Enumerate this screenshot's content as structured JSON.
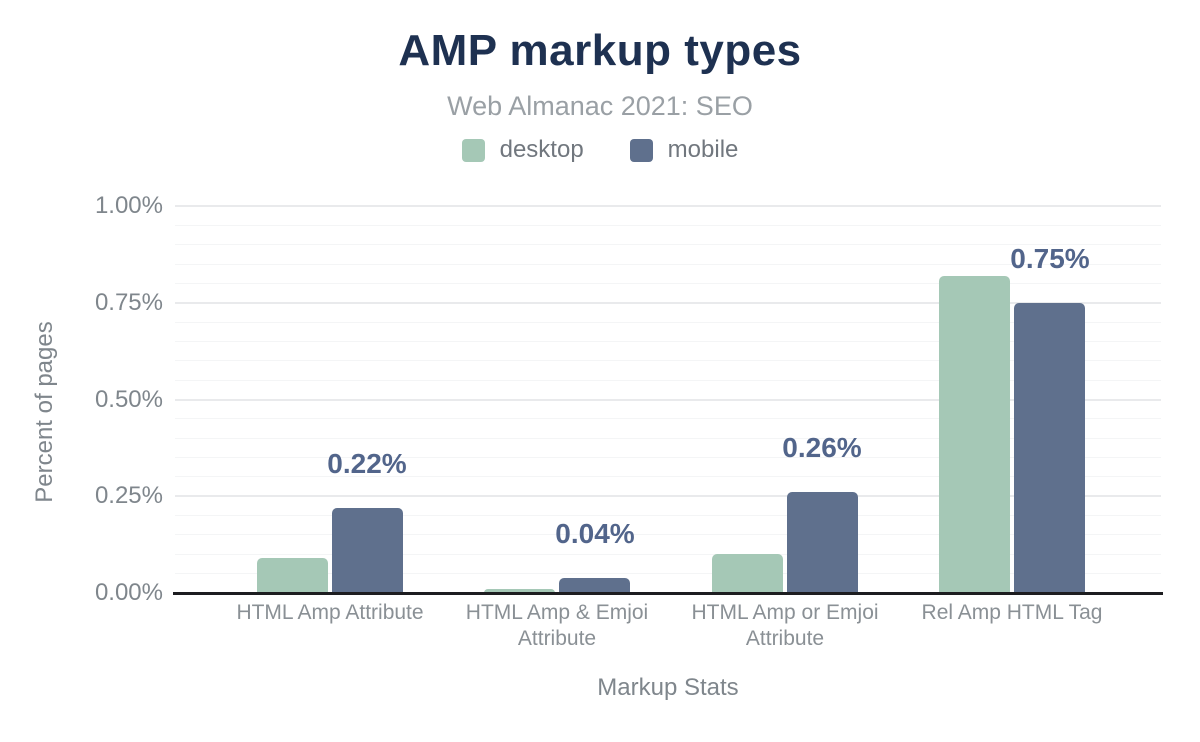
{
  "header": {
    "title": "AMP markup types",
    "subtitle": "Web Almanac 2021: SEO"
  },
  "legend": {
    "items": [
      {
        "label": "desktop",
        "color": "#a5c8b6"
      },
      {
        "label": "mobile",
        "color": "#5f708d"
      }
    ]
  },
  "chart_data": {
    "type": "bar",
    "title": "AMP markup types",
    "subtitle": "Web Almanac 2021: SEO",
    "categories": [
      "HTML Amp Attribute",
      "HTML Amp & Emjoi Attribute",
      "HTML Amp or Emjoi Attribute",
      "Rel Amp HTML Tag"
    ],
    "series": [
      {
        "name": "desktop",
        "color": "#a5c8b6",
        "values": [
          0.09,
          0.01,
          0.1,
          0.82
        ]
      },
      {
        "name": "mobile",
        "color": "#5f708d",
        "values": [
          0.22,
          0.04,
          0.26,
          0.75
        ]
      }
    ],
    "value_labels": {
      "series": "mobile",
      "texts": [
        "0.22%",
        "0.04%",
        "0.26%",
        "0.75%"
      ]
    },
    "xlabel": "Markup Stats",
    "ylabel": "Percent of pages",
    "unit": "percent",
    "ylim": [
      0,
      1.0
    ],
    "yticks": [
      {
        "value": 0.0,
        "label": "0.00%"
      },
      {
        "value": 0.25,
        "label": "0.25%"
      },
      {
        "value": 0.5,
        "label": "0.50%"
      },
      {
        "value": 0.75,
        "label": "0.75%"
      },
      {
        "value": 1.0,
        "label": "1.00%"
      }
    ],
    "grid": {
      "direction": "horizontal",
      "major_step": 0.25,
      "minor_step": 0.05
    },
    "legend_position": "top"
  },
  "colors": {
    "title": "#1e3151",
    "subtitle": "#9aa0a5",
    "axis_text": "#7f868c",
    "category_text": "#8a9095",
    "annotation": "#52658b",
    "axis_line": "#1d1d20",
    "grid_major": "#e9eaec",
    "grid_minor": "#f4f5f6"
  }
}
